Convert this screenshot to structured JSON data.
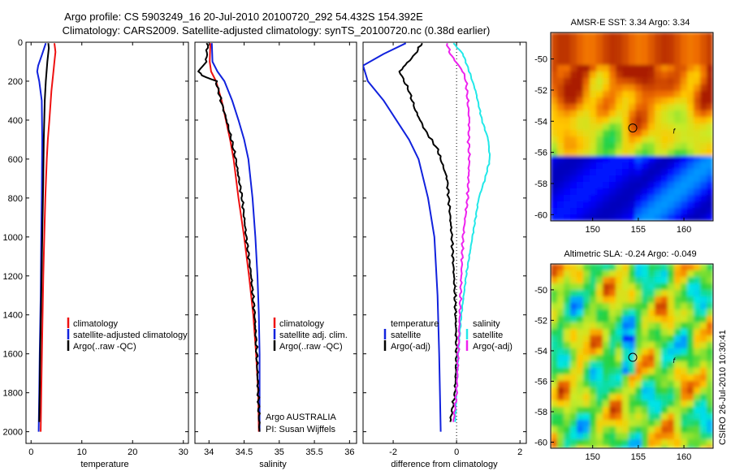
{
  "figure": {
    "title_line1": "Argo profile: CS 5903249_16 20-Jul-2010 20100720_292 54.432S 154.392E",
    "title_line2": "Climatology: CARS2009. Satellite-adjusted climatology: synTS_20100720.nc (0.38d earlier)",
    "stamp": "CSIRO 26-Jul-2010 10:30:41",
    "colors": {
      "climatology": "#ee1111",
      "satellite": "#1122dd",
      "argo": "#000000",
      "satellite_diff": "#22e8e8",
      "argo_diff": "#ee22ee"
    }
  },
  "chart_data": [
    {
      "type": "line",
      "panel": "temperature",
      "xlabel": "temperature",
      "ylabel": "",
      "xlim": [
        -1,
        31
      ],
      "ylim": [
        2060,
        0
      ],
      "y_reversed": true,
      "xticks": [
        0,
        10,
        20,
        30
      ],
      "yticks": [
        0,
        200,
        400,
        600,
        800,
        1000,
        1200,
        1400,
        1600,
        1800,
        2000
      ],
      "legend": [
        "climatology",
        "satellite-adjusted climatology",
        "Argo(..raw -QC)"
      ],
      "series": [
        {
          "name": "climatology",
          "color_key": "climatology",
          "points": [
            [
              4.6,
              5
            ],
            [
              4.8,
              50
            ],
            [
              4.6,
              100
            ],
            [
              4.4,
              150
            ],
            [
              4.0,
              250
            ],
            [
              3.6,
              400
            ],
            [
              3.3,
              500
            ],
            [
              3.1,
              600
            ],
            [
              2.8,
              800
            ],
            [
              2.6,
              1000
            ],
            [
              2.4,
              1200
            ],
            [
              2.2,
              1500
            ],
            [
              2.0,
              1800
            ],
            [
              1.9,
              2000
            ]
          ]
        },
        {
          "name": "satellite-adjusted climatology",
          "color_key": "satellite",
          "points": [
            [
              2.9,
              5
            ],
            [
              2.2,
              60
            ],
            [
              1.4,
              120
            ],
            [
              1.2,
              150
            ],
            [
              1.6,
              200
            ],
            [
              2.1,
              300
            ],
            [
              2.2,
              500
            ],
            [
              2.1,
              800
            ],
            [
              2.0,
              1000
            ],
            [
              1.9,
              1300
            ],
            [
              1.7,
              1600
            ],
            [
              1.6,
              1800
            ],
            [
              1.5,
              2000
            ]
          ]
        },
        {
          "name": "Argo(..raw -QC)",
          "color_key": "argo",
          "points": [
            [
              3.4,
              5
            ],
            [
              3.5,
              30
            ],
            [
              3.2,
              100
            ],
            [
              2.9,
              200
            ],
            [
              2.7,
              300
            ],
            [
              2.6,
              400
            ],
            [
              2.5,
              500
            ],
            [
              2.4,
              700
            ],
            [
              2.2,
              1000
            ],
            [
              2.0,
              1300
            ],
            [
              1.8,
              1600
            ],
            [
              1.7,
              1800
            ],
            [
              1.6,
              1950
            ]
          ]
        }
      ]
    },
    {
      "type": "line",
      "panel": "salinity",
      "xlabel": "salinity",
      "ylabel": "",
      "xlim": [
        33.8,
        36.1
      ],
      "ylim": [
        2060,
        0
      ],
      "y_reversed": true,
      "xticks": [
        34,
        34.5,
        35,
        35.5,
        36
      ],
      "legend": [
        "climatology",
        "satellite adj. clim.",
        "Argo(..raw -QC)"
      ],
      "series": [
        {
          "name": "climatology",
          "color_key": "climatology",
          "points": [
            [
              34.02,
              5
            ],
            [
              34.01,
              100
            ],
            [
              34.03,
              150
            ],
            [
              34.1,
              200
            ],
            [
              34.18,
              300
            ],
            [
              34.24,
              400
            ],
            [
              34.3,
              500
            ],
            [
              34.35,
              600
            ],
            [
              34.42,
              800
            ],
            [
              34.5,
              1000
            ],
            [
              34.57,
              1200
            ],
            [
              34.63,
              1400
            ],
            [
              34.67,
              1600
            ],
            [
              34.7,
              1800
            ],
            [
              34.71,
              2000
            ]
          ]
        },
        {
          "name": "satellite adj. clim.",
          "color_key": "satellite",
          "points": [
            [
              34.04,
              5
            ],
            [
              34.05,
              100
            ],
            [
              34.12,
              150
            ],
            [
              34.22,
              200
            ],
            [
              34.33,
              300
            ],
            [
              34.42,
              400
            ],
            [
              34.5,
              500
            ],
            [
              34.56,
              600
            ],
            [
              34.62,
              800
            ],
            [
              34.66,
              1000
            ],
            [
              34.69,
              1200
            ],
            [
              34.71,
              1400
            ],
            [
              34.72,
              1600
            ],
            [
              34.72,
              1800
            ],
            [
              34.72,
              2000
            ]
          ]
        },
        {
          "name": "Argo(..raw -QC)",
          "color_key": "argo",
          "points": [
            [
              33.98,
              5
            ],
            [
              33.96,
              100
            ],
            [
              33.85,
              150
            ],
            [
              33.9,
              170
            ],
            [
              34.1,
              200
            ],
            [
              34.17,
              300
            ],
            [
              34.25,
              400
            ],
            [
              34.32,
              500
            ],
            [
              34.38,
              600
            ],
            [
              34.47,
              800
            ],
            [
              34.53,
              1000
            ],
            [
              34.6,
              1200
            ],
            [
              34.65,
              1400
            ],
            [
              34.68,
              1600
            ],
            [
              34.7,
              1800
            ],
            [
              34.72,
              2000
            ]
          ]
        }
      ]
    },
    {
      "type": "line",
      "panel": "difference",
      "xlabel": "difference from climatology",
      "ylabel": "",
      "xlim": [
        -2.95,
        2.2
      ],
      "ylim": [
        2060,
        0
      ],
      "y_reversed": true,
      "xticks": [
        -2,
        0,
        2
      ],
      "zero_line": 0,
      "legend_groups": [
        {
          "heading": "temperature",
          "items": [
            "satellite",
            "Argo(-adj)"
          ]
        },
        {
          "heading": "salinity",
          "items": [
            "satellite",
            "Argo(-adj)"
          ]
        }
      ],
      "series": [
        {
          "name": "temperature satellite",
          "color_key": "satellite",
          "points": [
            [
              -1.6,
              5
            ],
            [
              -2.3,
              60
            ],
            [
              -2.95,
              120
            ],
            [
              -2.8,
              200
            ],
            [
              -2.3,
              300
            ],
            [
              -1.9,
              400
            ],
            [
              -1.5,
              500
            ],
            [
              -1.2,
              600
            ],
            [
              -0.9,
              800
            ],
            [
              -0.7,
              1000
            ],
            [
              -0.6,
              1300
            ],
            [
              -0.55,
              1600
            ],
            [
              -0.5,
              2000
            ]
          ]
        },
        {
          "name": "temperature Argo(-adj)",
          "color_key": "argo",
          "points": [
            [
              -1.1,
              5
            ],
            [
              -1.3,
              60
            ],
            [
              -1.8,
              150
            ],
            [
              -1.5,
              250
            ],
            [
              -1.3,
              350
            ],
            [
              -1.0,
              450
            ],
            [
              -0.6,
              550
            ],
            [
              -0.3,
              700
            ],
            [
              -0.15,
              1000
            ],
            [
              -0.05,
              1300
            ],
            [
              0.0,
              1600
            ],
            [
              -0.05,
              1800
            ],
            [
              -0.2,
              1950
            ]
          ]
        },
        {
          "name": "salinity satellite",
          "color_key": "satellite_diff",
          "points": [
            [
              -0.1,
              5
            ],
            [
              0.2,
              60
            ],
            [
              0.4,
              150
            ],
            [
              0.6,
              250
            ],
            [
              0.8,
              400
            ],
            [
              1.0,
              500
            ],
            [
              1.05,
              600
            ],
            [
              0.9,
              700
            ],
            [
              0.7,
              800
            ],
            [
              0.5,
              1000
            ],
            [
              0.3,
              1200
            ],
            [
              0.15,
              1400
            ],
            [
              0.05,
              1600
            ],
            [
              0.0,
              1800
            ],
            [
              -0.05,
              1950
            ]
          ]
        },
        {
          "name": "salinity Argo(-adj)",
          "color_key": "argo_diff",
          "points": [
            [
              -0.3,
              5
            ],
            [
              -0.2,
              60
            ],
            [
              0.2,
              150
            ],
            [
              0.3,
              200
            ],
            [
              0.35,
              300
            ],
            [
              0.4,
              400
            ],
            [
              0.38,
              500
            ],
            [
              0.4,
              600
            ],
            [
              0.35,
              800
            ],
            [
              0.2,
              1000
            ],
            [
              0.15,
              1200
            ],
            [
              0.1,
              1400
            ],
            [
              0.05,
              1600
            ],
            [
              0.0,
              1800
            ],
            [
              -0.1,
              1950
            ]
          ]
        }
      ]
    },
    {
      "type": "heatmap",
      "panel": "sst_map",
      "title": "AMSR-E SST: 3.34 Argo: 3.34",
      "xlim": [
        145.4,
        163.2
      ],
      "ylim": [
        -60.4,
        -48.3
      ],
      "xticks": [
        150,
        155,
        160
      ],
      "yticks": [
        -50,
        -52,
        -54,
        -56,
        -58,
        -60
      ],
      "marker": {
        "lon": 154.392,
        "lat": -54.432
      },
      "track_glyph": "f",
      "track_glyph_pos": {
        "lon": 158.8,
        "lat": -54.8
      }
    },
    {
      "type": "heatmap",
      "panel": "sla_map",
      "title": "Altimetric SLA: -0.24 Argo: -0.049",
      "xlim": [
        145.4,
        163.2
      ],
      "ylim": [
        -60.4,
        -48.3
      ],
      "xticks": [
        150,
        155,
        160
      ],
      "yticks": [
        -50,
        -52,
        -54,
        -56,
        -58,
        -60
      ],
      "marker": {
        "lon": 154.392,
        "lat": -54.432
      },
      "track_glyph": "f",
      "track_glyph_pos": {
        "lon": 158.8,
        "lat": -54.8
      }
    }
  ],
  "info": {
    "line1": "Argo AUSTRALIA",
    "line2": "PI: Susan Wijffels"
  }
}
